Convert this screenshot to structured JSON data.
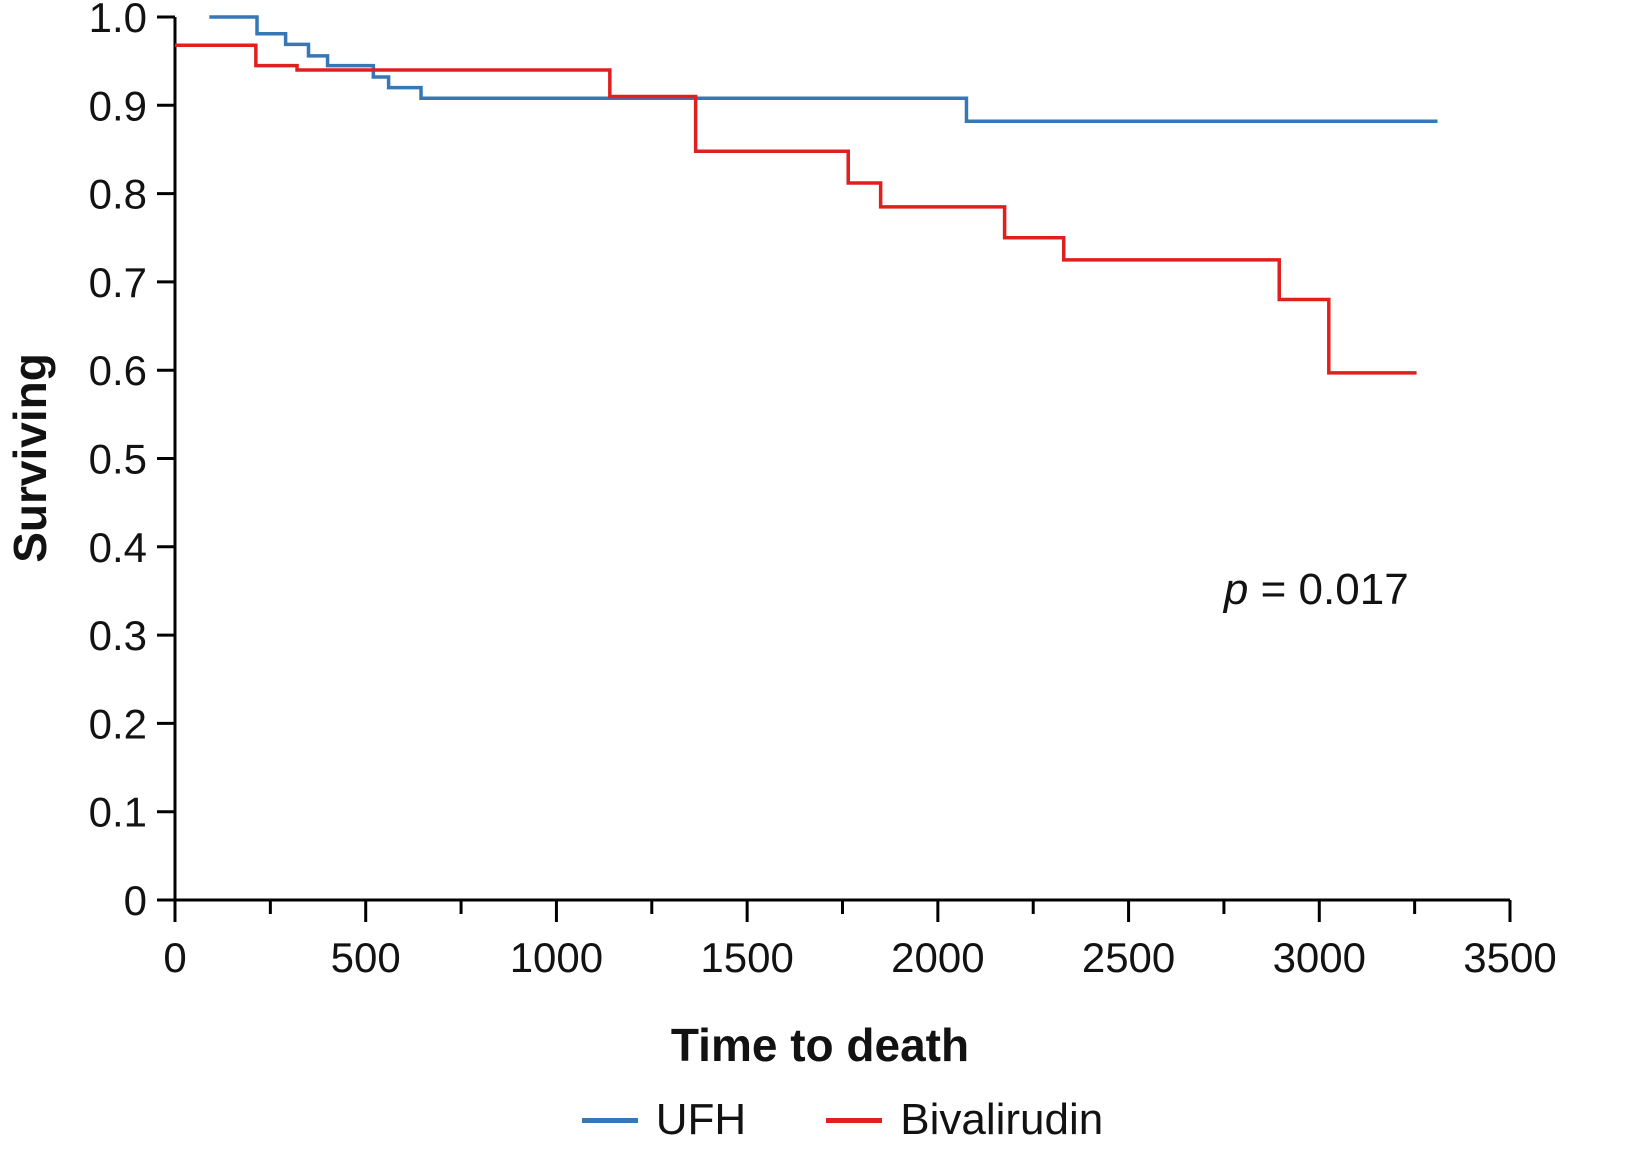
{
  "chart_data": {
    "type": "line",
    "subtype": "kaplan-meier-step",
    "title": "",
    "xlabel": "Time to death",
    "ylabel": "Surviving",
    "xlim": [
      0,
      3500
    ],
    "ylim": [
      0,
      1
    ],
    "grid": false,
    "legend_position": "bottom",
    "x_major_ticks": [
      0,
      500,
      1000,
      1500,
      2000,
      2500,
      3000,
      3500
    ],
    "x_minor_step": 250,
    "y_ticks": [
      1.0,
      0.9,
      0.8,
      0.7,
      0.6,
      0.5,
      0.4,
      0.3,
      0.2,
      0.1,
      0
    ],
    "y_tick_labels": [
      "1.0",
      "0.9",
      "0.8",
      "0.7",
      "0.6",
      "0.5",
      "0.4",
      "0.3",
      "0.2",
      "0.1",
      "0"
    ],
    "annotation": {
      "italic": "p",
      "text": " = 0.017",
      "x": 2750,
      "y": 0.335
    },
    "legend": [
      {
        "name": "UFH",
        "color": "#3578b5"
      },
      {
        "name": "Bivalirudin",
        "color": "#e0201e"
      }
    ],
    "series": [
      {
        "name": "UFH",
        "color": "#3578b5",
        "start": [
          90,
          1.0
        ],
        "steps": [
          [
            215,
            0.981
          ],
          [
            290,
            0.969
          ],
          [
            350,
            0.956
          ],
          [
            400,
            0.945
          ],
          [
            520,
            0.932
          ],
          [
            560,
            0.92
          ],
          [
            645,
            0.908
          ],
          [
            2075,
            0.882
          ]
        ],
        "end": 3310
      },
      {
        "name": "Bivalirudin",
        "color": "#e0201e",
        "start": [
          0,
          0.968
        ],
        "steps": [
          [
            212,
            0.945
          ],
          [
            320,
            0.94
          ],
          [
            1140,
            0.91
          ],
          [
            1365,
            0.848
          ],
          [
            1765,
            0.812
          ],
          [
            1850,
            0.785
          ],
          [
            2175,
            0.75
          ],
          [
            2330,
            0.725
          ],
          [
            2895,
            0.68
          ],
          [
            3025,
            0.597
          ]
        ],
        "end": 3255
      }
    ]
  }
}
